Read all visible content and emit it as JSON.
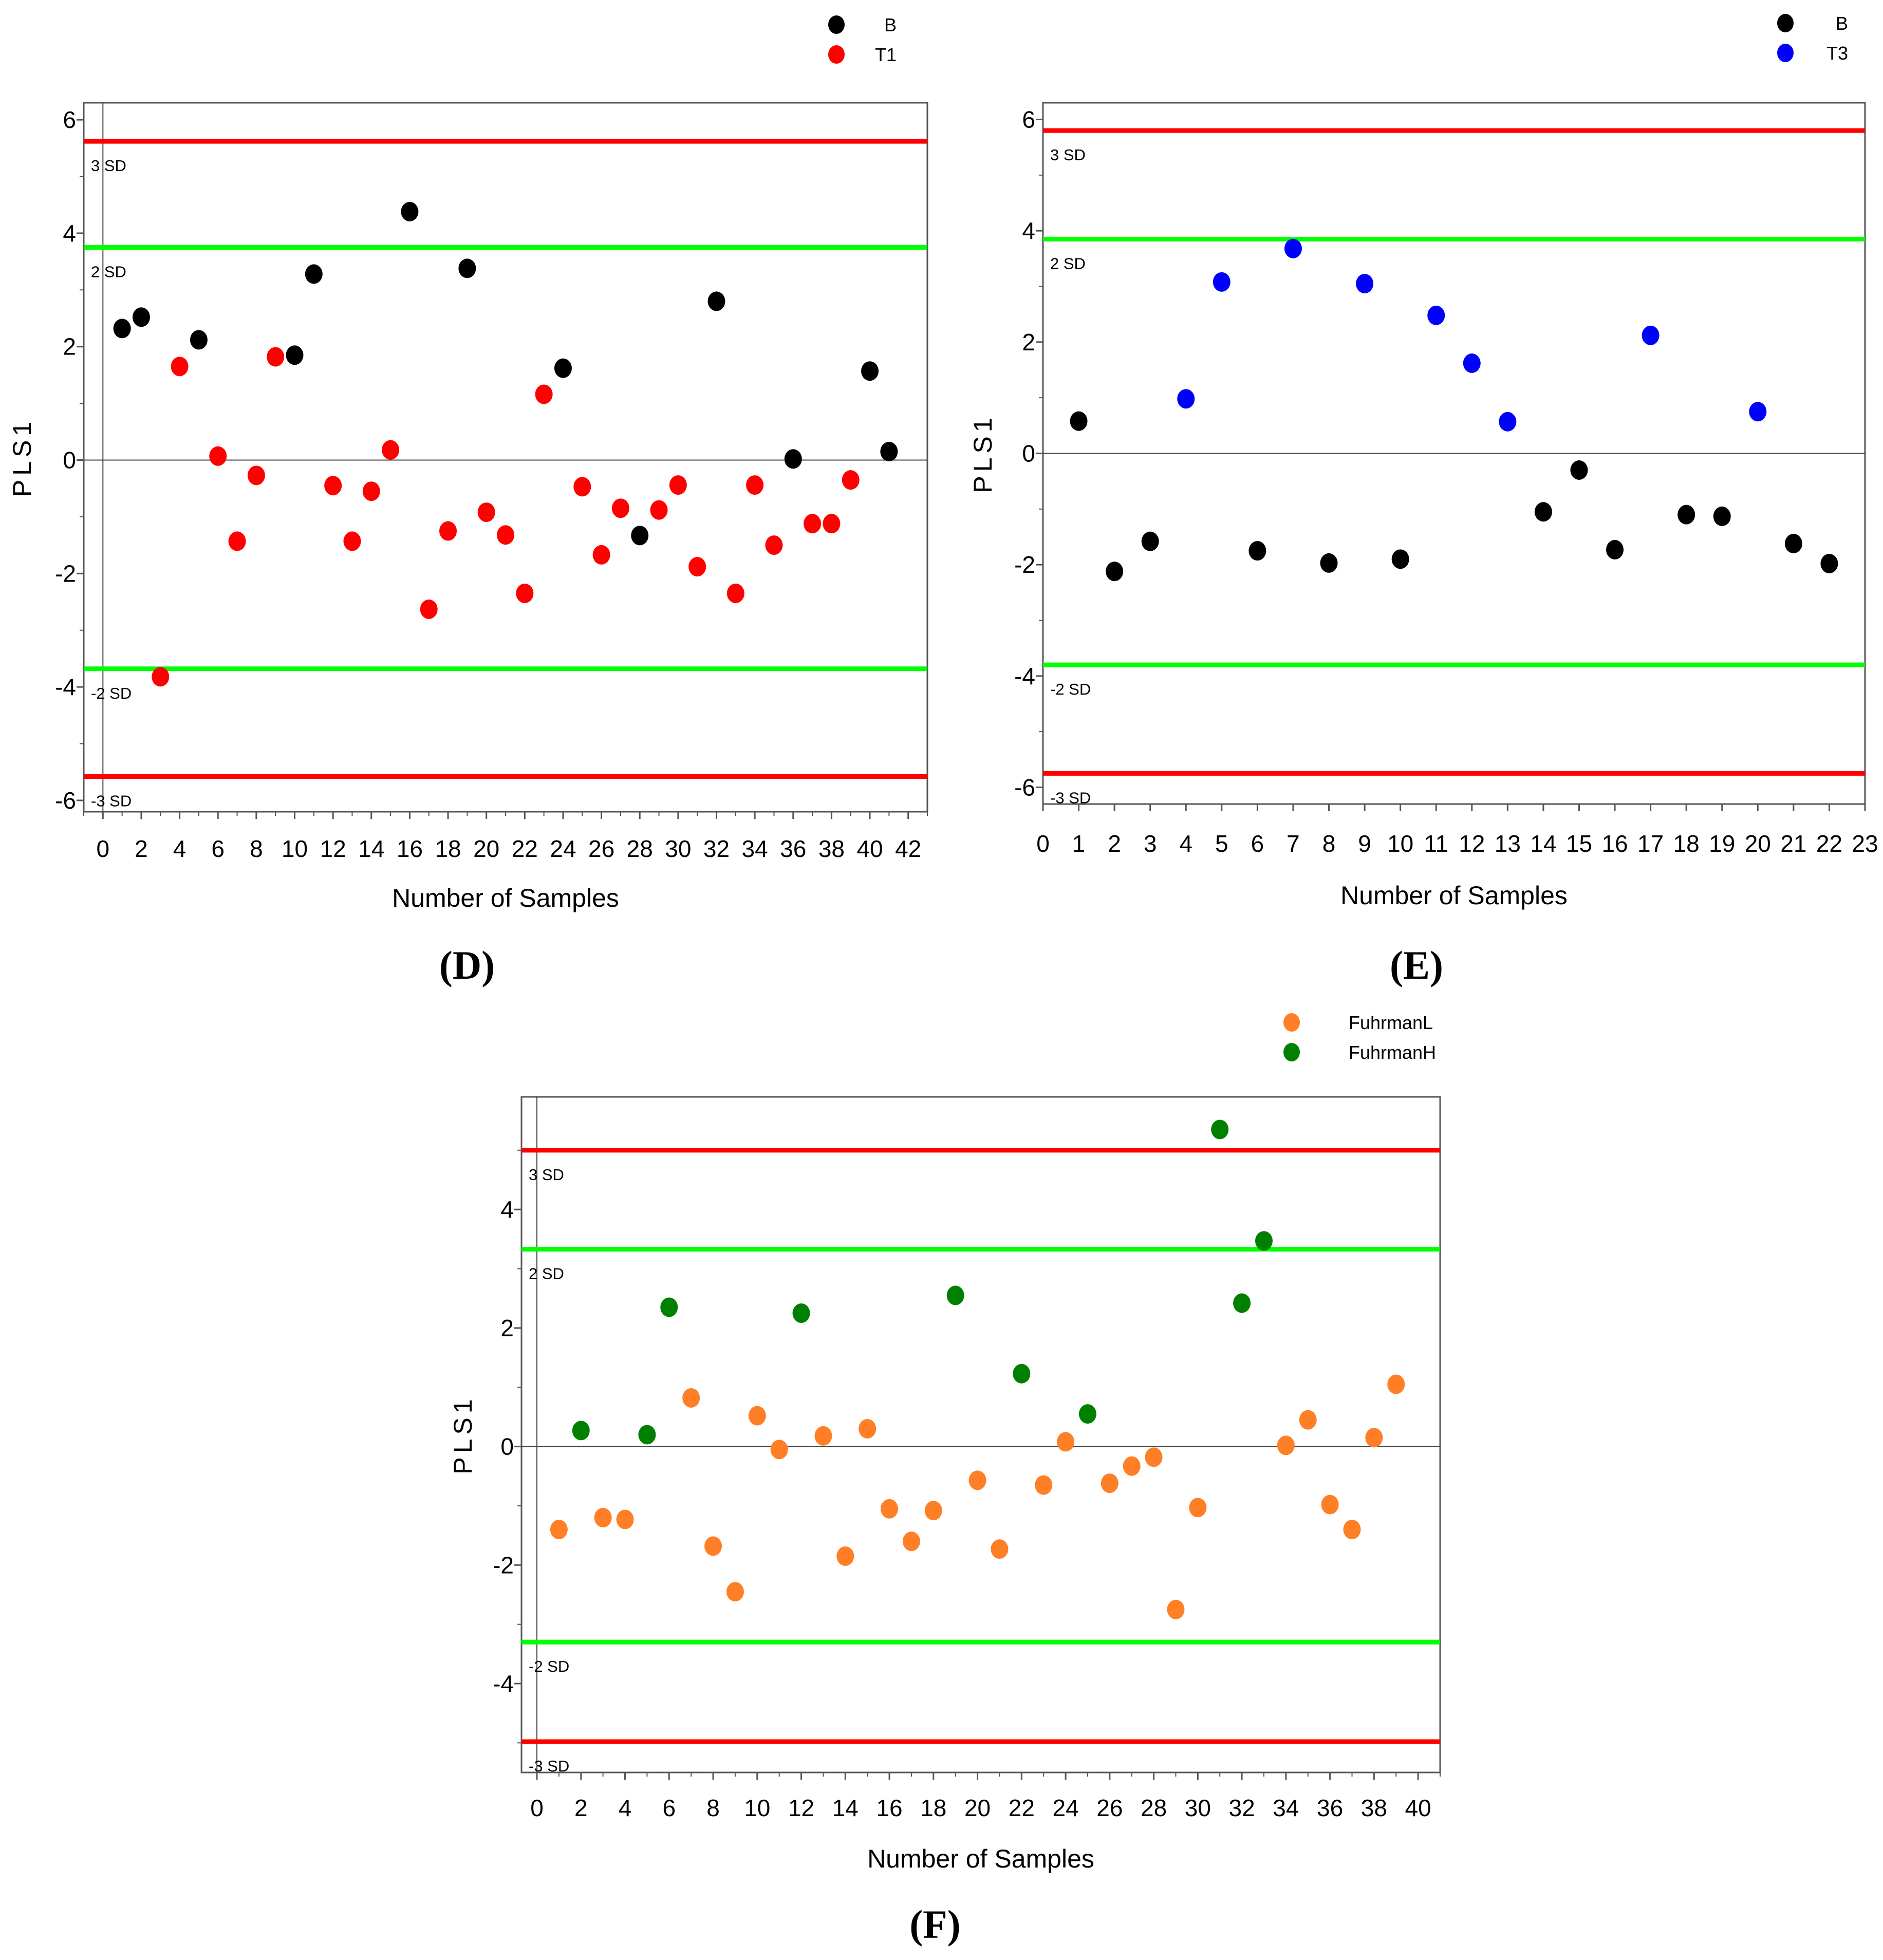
{
  "chart_data": [
    {
      "id": "D",
      "type": "scatter",
      "panel_label": "(D)",
      "xlabel": "Number of Samples",
      "ylabel": "PLS1",
      "xlim": [
        -1,
        43
      ],
      "ylim": [
        -6.2,
        6.3
      ],
      "xticks": [
        0,
        2,
        4,
        6,
        8,
        10,
        12,
        14,
        16,
        18,
        20,
        22,
        24,
        26,
        28,
        30,
        32,
        34,
        36,
        38,
        40,
        42
      ],
      "yticks": [
        -6,
        -4,
        -2,
        0,
        2,
        4,
        6
      ],
      "legend_position": "top-right",
      "ref_lines": [
        {
          "label": "3 SD",
          "y": 5.62,
          "color": "#ff0000"
        },
        {
          "label": "2 SD",
          "y": 3.75,
          "color": "#00ff00"
        },
        {
          "label": "-2 SD",
          "y": -3.68,
          "color": "#00ff00"
        },
        {
          "label": "-3 SD",
          "y": -5.58,
          "color": "#ff0000"
        }
      ],
      "series": [
        {
          "name": "B",
          "color": "#000000",
          "x": [
            1,
            2,
            5,
            10,
            11,
            16,
            19,
            24,
            28,
            32,
            36,
            40,
            41
          ],
          "y": [
            2.32,
            2.52,
            2.12,
            1.85,
            3.28,
            4.38,
            3.38,
            1.62,
            -1.33,
            2.8,
            0.02,
            1.57,
            0.15
          ]
        },
        {
          "name": "T1",
          "color": "#ff0000",
          "x": [
            3,
            4,
            6,
            7,
            8,
            9,
            12,
            13,
            14,
            15,
            17,
            18,
            20,
            21,
            22,
            23,
            25,
            26,
            27,
            29,
            30,
            31,
            33,
            34,
            35,
            37,
            38,
            39
          ],
          "y": [
            -3.82,
            1.65,
            0.07,
            -1.43,
            -0.27,
            1.82,
            -0.45,
            -1.43,
            -0.55,
            0.18,
            -2.63,
            -1.25,
            -0.92,
            -1.32,
            -2.35,
            1.16,
            -0.47,
            -1.67,
            -0.85,
            -0.88,
            -0.44,
            -1.88,
            -2.35,
            -0.44,
            -1.5,
            -1.12,
            -1.12,
            -0.35
          ]
        }
      ]
    },
    {
      "id": "E",
      "type": "scatter",
      "panel_label": "(E)",
      "xlabel": "Number of Samples",
      "ylabel": "PLS1",
      "xlim": [
        0,
        23
      ],
      "ylim": [
        -6.3,
        6.3
      ],
      "xticks": [
        0,
        1,
        2,
        3,
        4,
        5,
        6,
        7,
        8,
        9,
        10,
        11,
        12,
        13,
        14,
        15,
        16,
        17,
        18,
        19,
        20,
        21,
        22,
        23
      ],
      "yticks": [
        -6,
        -4,
        -2,
        0,
        2,
        4,
        6
      ],
      "legend_position": "top-right",
      "ref_lines": [
        {
          "label": "3 SD",
          "y": 5.8,
          "color": "#ff0000"
        },
        {
          "label": "2 SD",
          "y": 3.85,
          "color": "#00ff00"
        },
        {
          "label": "-2 SD",
          "y": -3.8,
          "color": "#00ff00"
        },
        {
          "label": "-3 SD",
          "y": -5.75,
          "color": "#ff0000"
        }
      ],
      "series": [
        {
          "name": "B",
          "color": "#000000",
          "x": [
            1,
            2,
            3,
            6,
            8,
            10,
            14,
            15,
            16,
            18,
            19,
            21,
            22
          ],
          "y": [
            0.58,
            -2.12,
            -1.58,
            -1.75,
            -1.97,
            -1.9,
            -1.05,
            -0.3,
            -1.73,
            -1.1,
            -1.13,
            -1.62,
            -1.98
          ]
        },
        {
          "name": "T3",
          "color": "#0000ff",
          "x": [
            4,
            5,
            7,
            9,
            11,
            12,
            13,
            17,
            20
          ],
          "y": [
            0.98,
            3.08,
            3.68,
            3.05,
            2.48,
            1.62,
            0.57,
            2.12,
            0.75
          ]
        }
      ]
    },
    {
      "id": "F",
      "type": "scatter",
      "panel_label": "(F)",
      "xlabel": "Number of Samples",
      "ylabel": "PLS1",
      "xlim": [
        -0.7,
        41
      ],
      "ylim": [
        -5.5,
        5.9
      ],
      "xticks": [
        0,
        2,
        4,
        6,
        8,
        10,
        12,
        14,
        16,
        18,
        20,
        22,
        24,
        26,
        28,
        30,
        32,
        34,
        36,
        38,
        40
      ],
      "yticks": [
        -4,
        -2,
        0,
        2,
        4
      ],
      "legend_position": "top-right",
      "ref_lines": [
        {
          "label": "3 SD",
          "y": 5.0,
          "color": "#ff0000"
        },
        {
          "label": "2 SD",
          "y": 3.33,
          "color": "#00ff00"
        },
        {
          "label": "-2 SD",
          "y": -3.3,
          "color": "#00ff00"
        },
        {
          "label": "-3 SD",
          "y": -4.98,
          "color": "#ff0000"
        }
      ],
      "series": [
        {
          "name": "FuhrmanL",
          "color": "#ff7f27",
          "x": [
            1,
            3,
            4,
            7,
            8,
            9,
            10,
            11,
            13,
            14,
            15,
            16,
            17,
            18,
            20,
            21,
            23,
            24,
            26,
            27,
            28,
            29,
            30,
            34,
            35,
            36,
            37,
            38,
            39
          ],
          "y": [
            -1.4,
            -1.2,
            -1.23,
            0.82,
            -1.68,
            -2.45,
            0.52,
            -0.05,
            0.18,
            -1.85,
            0.3,
            -1.05,
            -1.6,
            -1.08,
            -0.57,
            -1.73,
            -0.65,
            0.08,
            -0.62,
            -0.33,
            -0.18,
            -2.75,
            -1.03,
            0.02,
            0.45,
            -0.98,
            -1.4,
            0.15,
            1.05
          ]
        },
        {
          "name": "FuhrmanH",
          "color": "#008000",
          "x": [
            2,
            5,
            6,
            12,
            19,
            22,
            25,
            31,
            32,
            33
          ],
          "y": [
            0.27,
            0.2,
            2.35,
            2.25,
            2.55,
            1.23,
            0.55,
            5.35,
            2.42,
            3.47
          ]
        }
      ]
    }
  ]
}
